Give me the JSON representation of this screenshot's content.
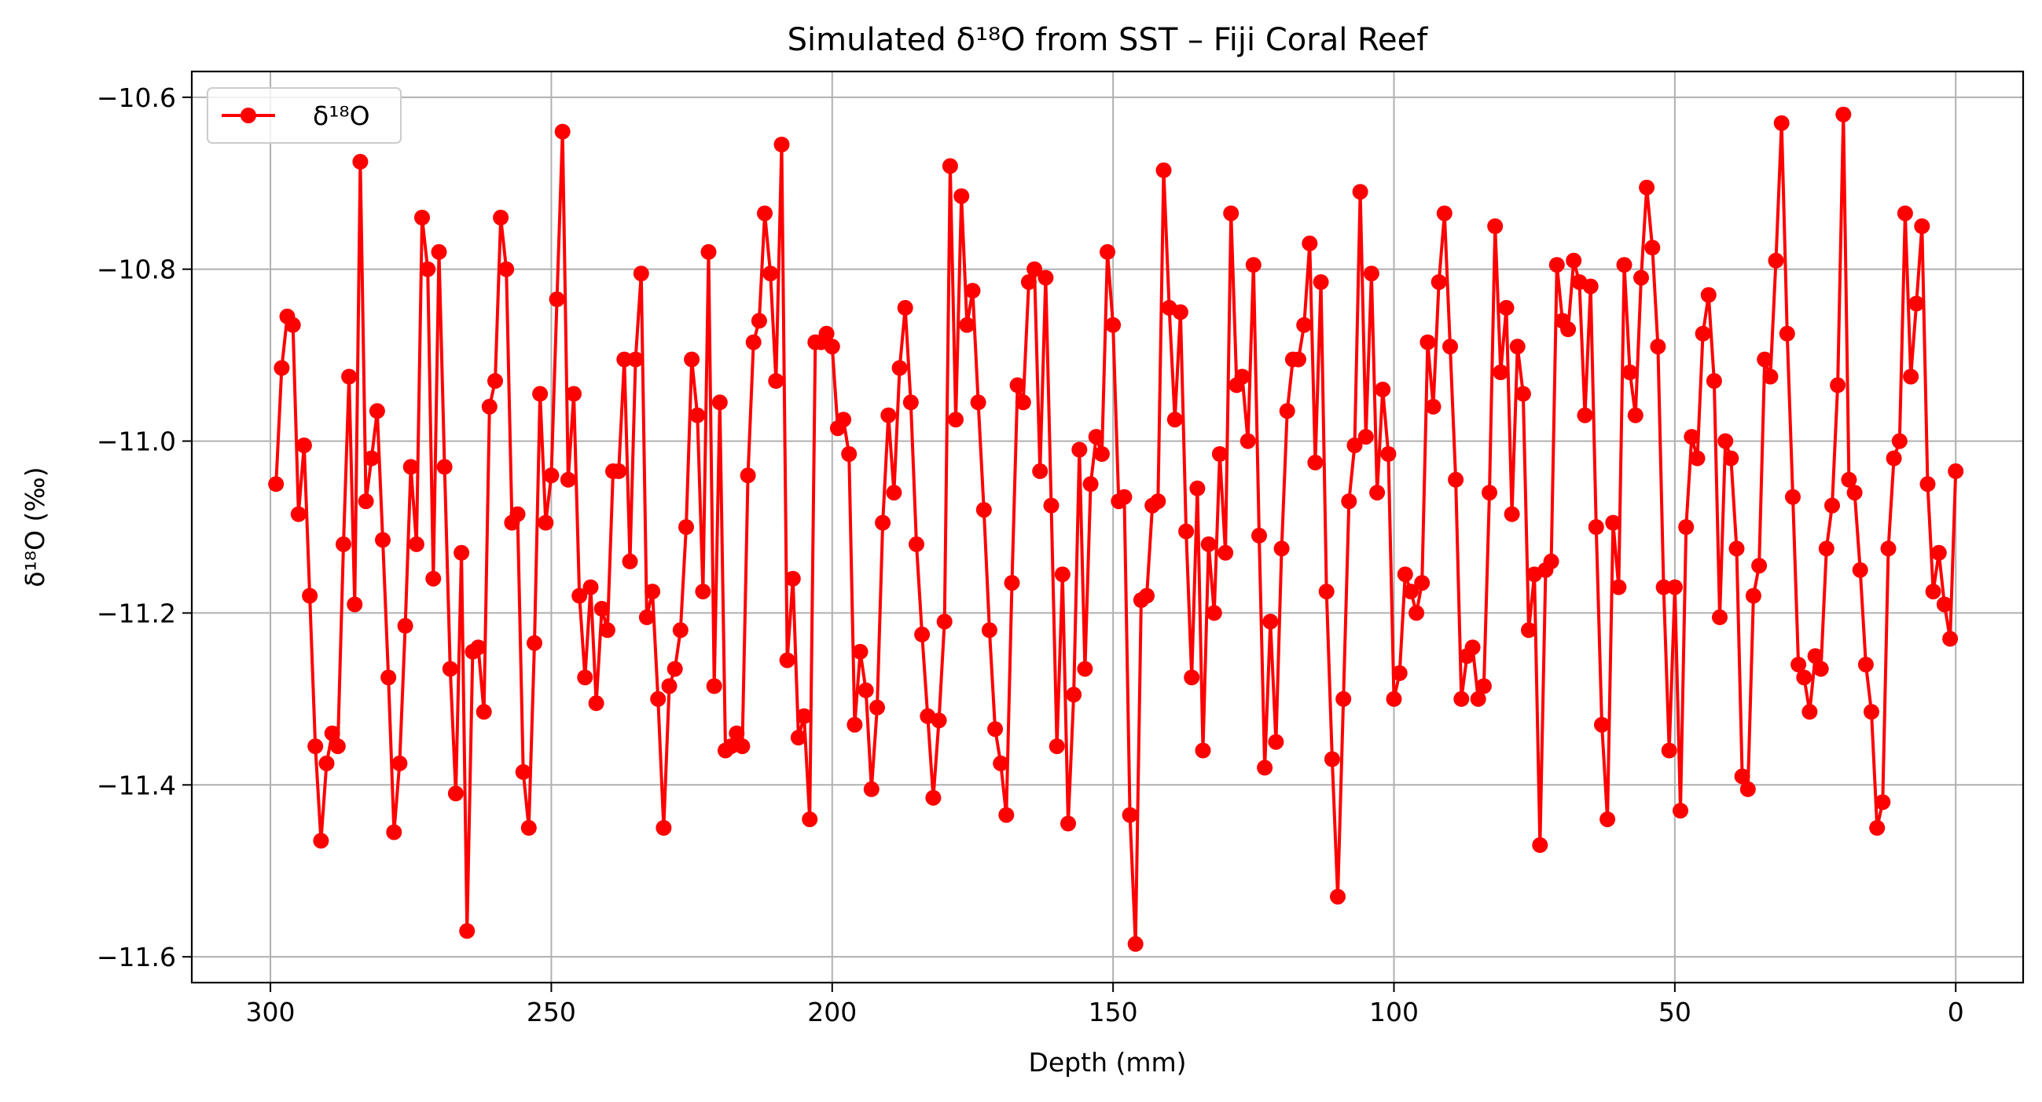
{
  "chart_data": {
    "type": "line",
    "title": "Simulated δ¹⁸O from SST – Fiji Coral Reef",
    "xlabel": "Depth (mm)",
    "ylabel": "δ¹⁸O (‰)",
    "xlim": [
      314,
      -12
    ],
    "ylim": [
      -11.63,
      -10.57
    ],
    "x_reversed": true,
    "xticks": [
      300,
      250,
      200,
      150,
      100,
      50,
      0
    ],
    "yticks": [
      -10.6,
      -10.8,
      -11.0,
      -11.2,
      -11.4,
      -11.6
    ],
    "xtick_labels": [
      "300",
      "250",
      "200",
      "150",
      "100",
      "50",
      "0"
    ],
    "ytick_labels": [
      "−10.6",
      "−10.8",
      "−11.0",
      "−11.2",
      "−11.4",
      "−11.6"
    ],
    "grid": true,
    "legend": {
      "placement": "upper-left",
      "entries": [
        "δ¹⁸O"
      ]
    },
    "series": [
      {
        "name": "δ¹⁸O",
        "color": "#ff0000",
        "marker": "circle",
        "points": [
          [
            299,
            -11.05
          ],
          [
            298,
            -10.915
          ],
          [
            297,
            -10.855
          ],
          [
            296,
            -10.865
          ],
          [
            295,
            -11.085
          ],
          [
            294,
            -11.005
          ],
          [
            293,
            -11.18
          ],
          [
            292,
            -11.355
          ],
          [
            291,
            -11.465
          ],
          [
            290,
            -11.375
          ],
          [
            289,
            -11.34
          ],
          [
            288,
            -11.355
          ],
          [
            287,
            -11.12
          ],
          [
            286,
            -10.925
          ],
          [
            285,
            -11.19
          ],
          [
            284,
            -10.675
          ],
          [
            283,
            -11.07
          ],
          [
            282,
            -11.02
          ],
          [
            281,
            -10.965
          ],
          [
            280,
            -11.115
          ],
          [
            279,
            -11.275
          ],
          [
            278,
            -11.455
          ],
          [
            277,
            -11.375
          ],
          [
            276,
            -11.215
          ],
          [
            275,
            -11.03
          ],
          [
            274,
            -11.12
          ],
          [
            273,
            -10.74
          ],
          [
            272,
            -10.8
          ],
          [
            271,
            -11.16
          ],
          [
            270,
            -10.78
          ],
          [
            269,
            -11.03
          ],
          [
            268,
            -11.265
          ],
          [
            267,
            -11.41
          ],
          [
            266,
            -11.13
          ],
          [
            265,
            -11.57
          ],
          [
            264,
            -11.245
          ],
          [
            263,
            -11.24
          ],
          [
            262,
            -11.315
          ],
          [
            261,
            -10.96
          ],
          [
            260,
            -10.93
          ],
          [
            259,
            -10.74
          ],
          [
            258,
            -10.8
          ],
          [
            257,
            -11.095
          ],
          [
            256,
            -11.085
          ],
          [
            255,
            -11.385
          ],
          [
            254,
            -11.45
          ],
          [
            253,
            -11.235
          ],
          [
            252,
            -10.945
          ],
          [
            251,
            -11.095
          ],
          [
            250,
            -11.04
          ],
          [
            249,
            -10.835
          ],
          [
            248,
            -10.64
          ],
          [
            247,
            -11.045
          ],
          [
            246,
            -10.945
          ],
          [
            245,
            -11.18
          ],
          [
            244,
            -11.275
          ],
          [
            243,
            -11.17
          ],
          [
            242,
            -11.305
          ],
          [
            241,
            -11.195
          ],
          [
            240,
            -11.22
          ],
          [
            239,
            -11.035
          ],
          [
            238,
            -11.035
          ],
          [
            237,
            -10.905
          ],
          [
            236,
            -11.14
          ],
          [
            235,
            -10.905
          ],
          [
            234,
            -10.805
          ],
          [
            233,
            -11.205
          ],
          [
            232,
            -11.175
          ],
          [
            231,
            -11.3
          ],
          [
            230,
            -11.45
          ],
          [
            229,
            -11.285
          ],
          [
            228,
            -11.265
          ],
          [
            227,
            -11.22
          ],
          [
            226,
            -11.1
          ],
          [
            225,
            -10.905
          ],
          [
            224,
            -10.97
          ],
          [
            223,
            -11.175
          ],
          [
            222,
            -10.78
          ],
          [
            221,
            -11.285
          ],
          [
            220,
            -10.955
          ],
          [
            219,
            -11.36
          ],
          [
            218,
            -11.355
          ],
          [
            217,
            -11.34
          ],
          [
            216,
            -11.355
          ],
          [
            215,
            -11.04
          ],
          [
            214,
            -10.885
          ],
          [
            213,
            -10.86
          ],
          [
            212,
            -10.735
          ],
          [
            211,
            -10.805
          ],
          [
            210,
            -10.93
          ],
          [
            209,
            -10.655
          ],
          [
            208,
            -11.255
          ],
          [
            207,
            -11.16
          ],
          [
            206,
            -11.345
          ],
          [
            205,
            -11.32
          ],
          [
            204,
            -11.44
          ],
          [
            203,
            -10.885
          ],
          [
            202,
            -10.885
          ],
          [
            201,
            -10.875
          ],
          [
            200,
            -10.89
          ],
          [
            199,
            -10.985
          ],
          [
            198,
            -10.975
          ],
          [
            197,
            -11.015
          ],
          [
            196,
            -11.33
          ],
          [
            195,
            -11.245
          ],
          [
            194,
            -11.29
          ],
          [
            193,
            -11.405
          ],
          [
            192,
            -11.31
          ],
          [
            191,
            -11.095
          ],
          [
            190,
            -10.97
          ],
          [
            189,
            -11.06
          ],
          [
            188,
            -10.915
          ],
          [
            187,
            -10.845
          ],
          [
            186,
            -10.955
          ],
          [
            185,
            -11.12
          ],
          [
            184,
            -11.225
          ],
          [
            183,
            -11.32
          ],
          [
            182,
            -11.415
          ],
          [
            181,
            -11.325
          ],
          [
            180,
            -11.21
          ],
          [
            179,
            -10.68
          ],
          [
            178,
            -10.975
          ],
          [
            177,
            -10.715
          ],
          [
            176,
            -10.865
          ],
          [
            175,
            -10.825
          ],
          [
            174,
            -10.955
          ],
          [
            173,
            -11.08
          ],
          [
            172,
            -11.22
          ],
          [
            171,
            -11.335
          ],
          [
            170,
            -11.375
          ],
          [
            169,
            -11.435
          ],
          [
            168,
            -11.165
          ],
          [
            167,
            -10.935
          ],
          [
            166,
            -10.955
          ],
          [
            165,
            -10.815
          ],
          [
            164,
            -10.8
          ],
          [
            163,
            -11.035
          ],
          [
            162,
            -10.81
          ],
          [
            161,
            -11.075
          ],
          [
            160,
            -11.355
          ],
          [
            159,
            -11.155
          ],
          [
            158,
            -11.445
          ],
          [
            157,
            -11.295
          ],
          [
            156,
            -11.01
          ],
          [
            155,
            -11.265
          ],
          [
            154,
            -11.05
          ],
          [
            153,
            -10.995
          ],
          [
            152,
            -11.015
          ],
          [
            151,
            -10.78
          ],
          [
            150,
            -10.865
          ],
          [
            149,
            -11.07
          ],
          [
            148,
            -11.065
          ],
          [
            147,
            -11.435
          ],
          [
            146,
            -11.585
          ],
          [
            145,
            -11.185
          ],
          [
            144,
            -11.18
          ],
          [
            143,
            -11.075
          ],
          [
            142,
            -11.07
          ],
          [
            141,
            -10.685
          ],
          [
            140,
            -10.845
          ],
          [
            139,
            -10.975
          ],
          [
            138,
            -10.85
          ],
          [
            137,
            -11.105
          ],
          [
            136,
            -11.275
          ],
          [
            135,
            -11.055
          ],
          [
            134,
            -11.36
          ],
          [
            133,
            -11.12
          ],
          [
            132,
            -11.2
          ],
          [
            131,
            -11.015
          ],
          [
            130,
            -11.13
          ],
          [
            129,
            -10.735
          ],
          [
            128,
            -10.935
          ],
          [
            127,
            -10.925
          ],
          [
            126,
            -11.0
          ],
          [
            125,
            -10.795
          ],
          [
            124,
            -11.11
          ],
          [
            123,
            -11.38
          ],
          [
            122,
            -11.21
          ],
          [
            121,
            -11.35
          ],
          [
            120,
            -11.125
          ],
          [
            119,
            -10.965
          ],
          [
            118,
            -10.905
          ],
          [
            117,
            -10.905
          ],
          [
            116,
            -10.865
          ],
          [
            115,
            -10.77
          ],
          [
            114,
            -11.025
          ],
          [
            113,
            -10.815
          ],
          [
            112,
            -11.175
          ],
          [
            111,
            -11.37
          ],
          [
            110,
            -11.53
          ],
          [
            109,
            -11.3
          ],
          [
            108,
            -11.07
          ],
          [
            107,
            -11.005
          ],
          [
            106,
            -10.71
          ],
          [
            105,
            -10.995
          ],
          [
            104,
            -10.805
          ],
          [
            103,
            -11.06
          ],
          [
            102,
            -10.94
          ],
          [
            101,
            -11.015
          ],
          [
            100,
            -11.3
          ],
          [
            99,
            -11.27
          ],
          [
            98,
            -11.155
          ],
          [
            97,
            -11.175
          ],
          [
            96,
            -11.2
          ],
          [
            95,
            -11.165
          ],
          [
            94,
            -10.885
          ],
          [
            93,
            -10.96
          ],
          [
            92,
            -10.815
          ],
          [
            91,
            -10.735
          ],
          [
            90,
            -10.89
          ],
          [
            89,
            -11.045
          ],
          [
            88,
            -11.3
          ],
          [
            87,
            -11.25
          ],
          [
            86,
            -11.24
          ],
          [
            85,
            -11.3
          ],
          [
            84,
            -11.285
          ],
          [
            83,
            -11.06
          ],
          [
            82,
            -10.75
          ],
          [
            81,
            -10.92
          ],
          [
            80,
            -10.845
          ],
          [
            79,
            -11.085
          ],
          [
            78,
            -10.89
          ],
          [
            77,
            -10.945
          ],
          [
            76,
            -11.22
          ],
          [
            75,
            -11.155
          ],
          [
            74,
            -11.47
          ],
          [
            73,
            -11.15
          ],
          [
            72,
            -11.14
          ],
          [
            71,
            -10.795
          ],
          [
            70,
            -10.86
          ],
          [
            69,
            -10.87
          ],
          [
            68,
            -10.79
          ],
          [
            67,
            -10.815
          ],
          [
            66,
            -10.97
          ],
          [
            65,
            -10.82
          ],
          [
            64,
            -11.1
          ],
          [
            63,
            -11.33
          ],
          [
            62,
            -11.44
          ],
          [
            61,
            -11.095
          ],
          [
            60,
            -11.17
          ],
          [
            59,
            -10.795
          ],
          [
            58,
            -10.92
          ],
          [
            57,
            -10.97
          ],
          [
            56,
            -10.81
          ],
          [
            55,
            -10.705
          ],
          [
            54,
            -10.775
          ],
          [
            53,
            -10.89
          ],
          [
            52,
            -11.17
          ],
          [
            51,
            -11.36
          ],
          [
            50,
            -11.17
          ],
          [
            49,
            -11.43
          ],
          [
            48,
            -11.1
          ],
          [
            47,
            -10.995
          ],
          [
            46,
            -11.02
          ],
          [
            45,
            -10.875
          ],
          [
            44,
            -10.83
          ],
          [
            43,
            -10.93
          ],
          [
            42,
            -11.205
          ],
          [
            41,
            -11.0
          ],
          [
            40,
            -11.02
          ],
          [
            39,
            -11.125
          ],
          [
            38,
            -11.39
          ],
          [
            37,
            -11.405
          ],
          [
            36,
            -11.18
          ],
          [
            35,
            -11.145
          ],
          [
            34,
            -10.905
          ],
          [
            33,
            -10.925
          ],
          [
            32,
            -10.79
          ],
          [
            31,
            -10.63
          ],
          [
            30,
            -10.875
          ],
          [
            29,
            -11.065
          ],
          [
            28,
            -11.26
          ],
          [
            27,
            -11.275
          ],
          [
            26,
            -11.315
          ],
          [
            25,
            -11.25
          ],
          [
            24,
            -11.265
          ],
          [
            23,
            -11.125
          ],
          [
            22,
            -11.075
          ],
          [
            21,
            -10.935
          ],
          [
            20,
            -10.62
          ],
          [
            19,
            -11.045
          ],
          [
            18,
            -11.06
          ],
          [
            17,
            -11.15
          ],
          [
            16,
            -11.26
          ],
          [
            15,
            -11.315
          ],
          [
            14,
            -11.45
          ],
          [
            13,
            -11.42
          ],
          [
            12,
            -11.125
          ],
          [
            11,
            -11.02
          ],
          [
            10,
            -11.0
          ],
          [
            9,
            -10.735
          ],
          [
            8,
            -10.925
          ],
          [
            7,
            -10.84
          ],
          [
            6,
            -10.75
          ],
          [
            5,
            -11.05
          ],
          [
            4,
            -11.175
          ],
          [
            3,
            -11.13
          ],
          [
            2,
            -11.19
          ],
          [
            1,
            -11.23
          ],
          [
            0,
            -11.035
          ]
        ]
      }
    ]
  }
}
